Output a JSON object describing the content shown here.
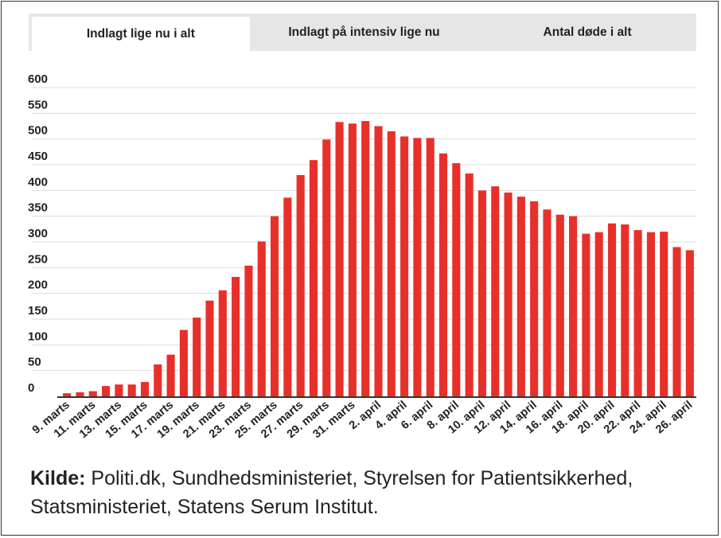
{
  "tabs": [
    {
      "label": "Indlagt lige nu i alt",
      "active": true
    },
    {
      "label": "Indlagt på intensiv lige nu",
      "active": false
    },
    {
      "label": "Antal døde i alt",
      "active": false
    }
  ],
  "source": {
    "label": "Kilde:",
    "text": " Politi.dk, Sundhedsministeriet, Styrelsen for Patientsikkerhed, Statsministeriet, Statens Serum Institut."
  },
  "colors": {
    "bar": "#e8302a",
    "grid": "#dddddd",
    "axis": "#333333"
  },
  "chart_data": {
    "type": "bar",
    "ylim": [
      0,
      600
    ],
    "yticks": [
      0,
      50,
      100,
      150,
      200,
      250,
      300,
      350,
      400,
      450,
      500,
      550,
      600
    ],
    "grid": true,
    "categories": [
      "9. marts",
      "10. marts",
      "11. marts",
      "12. marts",
      "13. marts",
      "14. marts",
      "15. marts",
      "16. marts",
      "17. marts",
      "18. marts",
      "19. marts",
      "20. marts",
      "21. marts",
      "22. marts",
      "23. marts",
      "24. marts",
      "25. marts",
      "26. marts",
      "27. marts",
      "28. marts",
      "29. marts",
      "30. marts",
      "31. marts",
      "1. april",
      "2. april",
      "3. april",
      "4. april",
      "5. april",
      "6. april",
      "7. april",
      "8. april",
      "9. april",
      "10. april",
      "11. april",
      "12. april",
      "13. april",
      "14. april",
      "15. april",
      "16. april",
      "17. april",
      "18. april",
      "19. april",
      "20. april",
      "21. april",
      "22. april",
      "23. april",
      "24. april",
      "25. april",
      "26. april"
    ],
    "xtick_labels": [
      "9. marts",
      "11. marts",
      "13. marts",
      "15. marts",
      "17. marts",
      "19. marts",
      "21. marts",
      "23. marts",
      "25. marts",
      "27. marts",
      "29. marts",
      "31. marts",
      "2. april",
      "4. april",
      "6. april",
      "8. april",
      "10. april",
      "12. april",
      "14. april",
      "16. april",
      "18. april",
      "20. april",
      "22. april",
      "24. april",
      "26. april"
    ],
    "values": [
      6,
      8,
      10,
      20,
      23,
      23,
      28,
      62,
      81,
      129,
      153,
      186,
      206,
      232,
      254,
      301,
      350,
      386,
      430,
      459,
      499,
      533,
      530,
      535,
      525,
      515,
      505,
      502,
      502,
      472,
      453,
      433,
      400,
      408,
      396,
      388,
      379,
      363,
      353,
      350,
      316,
      319,
      336,
      334,
      323,
      319,
      320,
      290,
      284
    ]
  }
}
